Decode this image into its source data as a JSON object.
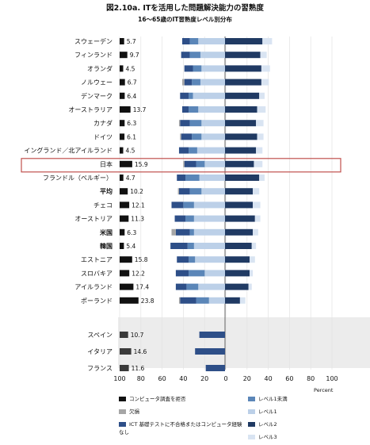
{
  "title": "図2.10a. ITを活用した問題解決能力の習熟度",
  "subtitle": "16～65歳のIT習熟度レベル別分布",
  "x_unit": "Percent",
  "colors": {
    "refused": "#111111",
    "missing": "#a6a6a6",
    "failed": "#2e4f88",
    "below1": "#5b86b8",
    "level1": "#bcd0e8",
    "level2": "#203a63",
    "level3": "#d9e4f2",
    "highlight": "#c0504d",
    "excluded_band": "#ececec"
  },
  "legend": [
    {
      "key": "refused",
      "label": "コンピュータ調査を拒否"
    },
    {
      "key": "missing",
      "label": "欠損"
    },
    {
      "key": "failed",
      "label": "ICT 基礎テストに不合格またはコンピュータ経験なし"
    },
    {
      "key": "below1",
      "label": "レベル1未満"
    },
    {
      "key": "level1",
      "label": "レベル1"
    },
    {
      "key": "level2",
      "label": "レベル2"
    },
    {
      "key": "level3",
      "label": "レベル3"
    }
  ],
  "chart_data": {
    "type": "bar",
    "orientation": "horizontal-diverging",
    "xlim": [
      -100,
      100
    ],
    "xticks": [
      "100",
      "80",
      "60",
      "40",
      "20",
      "0",
      "20",
      "40",
      "60",
      "80",
      "100"
    ],
    "highlight_category": "日本",
    "categories": [
      "スウェーデン",
      "フィンランド",
      "オランダ",
      "ノルウェー",
      "デンマーク",
      "オーストラリア",
      "カナダ",
      "ドイツ",
      "イングランド／北アイルランド",
      "日本",
      "フランドル（ベルギー）",
      "平均",
      "チェコ",
      "オーストリア",
      "米国",
      "韓国",
      "エストニア",
      "スロバキア",
      "アイルランド",
      "ポーランド"
    ],
    "refused_values": [
      5.7,
      9.7,
      4.5,
      6.7,
      6.4,
      13.7,
      6.3,
      6.1,
      4.5,
      15.9,
      4.7,
      10.2,
      12.1,
      11.3,
      6.3,
      5.4,
      15.8,
      12.2,
      17.4,
      23.8
    ],
    "series_left": [
      {
        "key": "missing",
        "values": [
          0,
          0,
          0,
          2,
          0,
          0,
          1,
          1,
          0,
          1,
          0,
          1,
          0,
          0,
          4,
          0,
          0,
          0,
          0,
          1
        ]
      },
      {
        "key": "failed",
        "values": [
          7,
          8,
          8,
          7,
          8,
          6,
          9,
          10,
          9,
          11,
          8,
          10,
          11,
          10,
          13,
          16,
          11,
          12,
          10,
          15
        ]
      },
      {
        "key": "below1",
        "values": [
          8,
          10,
          8,
          8,
          4,
          9,
          11,
          9,
          8,
          8,
          13,
          11,
          10,
          8,
          4,
          6,
          6,
          15,
          11,
          12
        ]
      },
      {
        "key": "level1",
        "values": [
          25,
          23,
          22,
          23,
          30,
          25,
          22,
          22,
          26,
          19,
          24,
          22,
          29,
          29,
          29,
          29,
          28,
          19,
          25,
          15
        ]
      }
    ],
    "series_right": [
      {
        "key": "level2",
        "values": [
          35,
          33,
          34,
          34,
          32,
          30,
          29,
          30,
          29,
          27,
          32,
          26,
          26,
          28,
          26,
          25,
          23,
          23,
          22,
          14
        ]
      },
      {
        "key": "level3",
        "values": [
          9,
          6,
          8,
          7,
          5,
          8,
          7,
          6,
          6,
          8,
          5,
          6,
          7,
          5,
          5,
          4,
          5,
          3,
          3,
          5
        ]
      }
    ],
    "excluded_categories": [
      "スペイン",
      "イタリア",
      "フランス"
    ],
    "excluded_refused_values": [
      10.7,
      14.6,
      11.6
    ],
    "excluded_failed_values": [
      24,
      28,
      18
    ]
  }
}
